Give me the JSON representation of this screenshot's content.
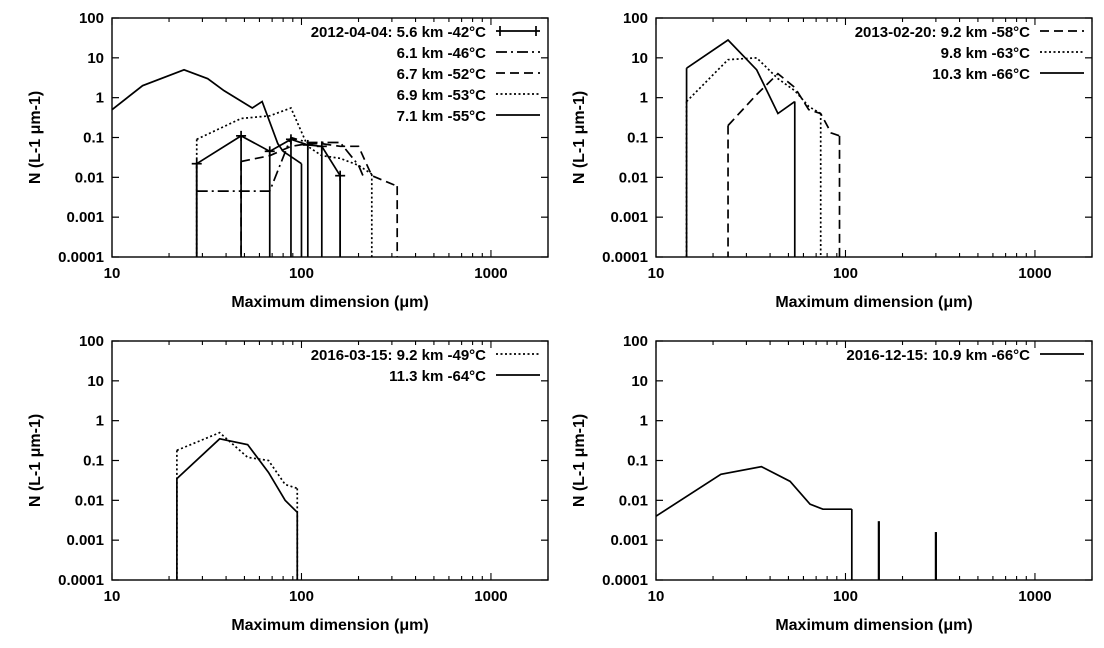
{
  "chart_data": [
    {
      "type": "line",
      "xlabel": "Maximum dimension (μm)",
      "ylabel": "N (L-1 μm-1)",
      "xscale": "log",
      "yscale": "log",
      "xlim": [
        10,
        2000
      ],
      "ylim": [
        0.0001,
        100
      ],
      "x_ticks": [
        "10",
        "100",
        "1000"
      ],
      "y_ticks": [
        "0.0001",
        "0.001",
        "0.01",
        "0.1",
        "1",
        "10",
        "100"
      ],
      "legend_position": "top-right",
      "grid": false,
      "series": [
        {
          "name": "2012-04-04: 5.6 km  -42°C",
          "style": "solid-cross",
          "drop_bins": true,
          "x": [
            28,
            48,
            68,
            88,
            108,
            128,
            160
          ],
          "y": [
            0.022,
            0.11,
            0.045,
            0.09,
            0.065,
            0.06,
            0.011
          ]
        },
        {
          "name": "6.1 km  -46°C",
          "style": "dashdot",
          "drop_bins": false,
          "x": [
            28,
            48,
            68,
            88,
            108,
            128,
            160,
            200,
            215
          ],
          "y": [
            0.0045,
            0.0045,
            0.0045,
            0.1,
            0.075,
            0.075,
            0.075,
            0.02,
            0.009
          ]
        },
        {
          "name": "6.7 km  -52°C",
          "style": "dashed",
          "drop_bins": true,
          "x": [
            48,
            68,
            88,
            108,
            128,
            160,
            200,
            235,
            320
          ],
          "y": [
            0.025,
            0.035,
            0.06,
            0.07,
            0.07,
            0.06,
            0.06,
            0.011,
            0.006
          ]
        },
        {
          "name": "6.9 km  -53°C",
          "style": "dotted",
          "drop_bins": true,
          "x": [
            28,
            48,
            68,
            88,
            108,
            128,
            160,
            200,
            235
          ],
          "y": [
            0.09,
            0.3,
            0.35,
            0.55,
            0.06,
            0.035,
            0.03,
            0.02,
            0.012
          ]
        },
        {
          "name": "7.1 km  -55°C",
          "style": "solid",
          "drop_bins": true,
          "x": [
            10,
            14.5,
            24,
            32,
            39,
            55,
            62,
            75,
            80,
            100
          ],
          "y": [
            0.5,
            2,
            5,
            3,
            1.5,
            0.55,
            0.8,
            0.07,
            0.045,
            0.022
          ]
        }
      ]
    },
    {
      "type": "line",
      "xlabel": "Maximum dimension (μm)",
      "ylabel": "N (L-1 μm-1)",
      "xscale": "log",
      "yscale": "log",
      "xlim": [
        10,
        2000
      ],
      "ylim": [
        0.0001,
        100
      ],
      "x_ticks": [
        "10",
        "100",
        "1000"
      ],
      "y_ticks": [
        "0.0001",
        "0.001",
        "0.01",
        "0.1",
        "1",
        "10",
        "100"
      ],
      "legend_position": "top-right",
      "grid": false,
      "series": [
        {
          "name": "2013-02-20: 9.2 km  -58°C",
          "style": "dashed",
          "drop_bins": true,
          "x": [
            24,
            34,
            44,
            54,
            64,
            74,
            84,
            93
          ],
          "y": [
            0.2,
            1.2,
            4,
            1.8,
            0.5,
            0.4,
            0.13,
            0.11
          ]
        },
        {
          "name": "9.8 km  -63°C",
          "style": "dotted",
          "drop_bins": true,
          "x": [
            14.5,
            24,
            34,
            44,
            54,
            64,
            74
          ],
          "y": [
            0.8,
            9,
            10,
            3,
            1.5,
            0.6,
            0.4
          ]
        },
        {
          "name": "10.3 km  -66°C",
          "style": "solid",
          "drop_bins": true,
          "x": [
            14.5,
            24,
            34,
            44,
            54
          ],
          "y": [
            5.5,
            28,
            5,
            0.4,
            0.8
          ]
        }
      ]
    },
    {
      "type": "line",
      "xlabel": "Maximum dimension (μm)",
      "ylabel": "N (L-1 μm-1)",
      "xscale": "log",
      "yscale": "log",
      "xlim": [
        10,
        2000
      ],
      "ylim": [
        0.0001,
        100
      ],
      "x_ticks": [
        "10",
        "100",
        "1000"
      ],
      "y_ticks": [
        "0.0001",
        "0.001",
        "0.01",
        "0.1",
        "1",
        "10",
        "100"
      ],
      "legend_position": "top-right",
      "grid": false,
      "series": [
        {
          "name": "2016-03-15: 9.2 km  -49°C",
          "style": "dotted",
          "drop_bins": true,
          "x": [
            22,
            37,
            52,
            67,
            82,
            95
          ],
          "y": [
            0.18,
            0.5,
            0.12,
            0.1,
            0.025,
            0.02
          ]
        },
        {
          "name": "11.3 km  -64°C",
          "style": "solid",
          "drop_bins": true,
          "x": [
            22,
            37,
            52,
            67,
            82,
            95
          ],
          "y": [
            0.035,
            0.35,
            0.25,
            0.05,
            0.01,
            0.005
          ]
        }
      ]
    },
    {
      "type": "line",
      "xlabel": "Maximum dimension (μm)",
      "ylabel": "N (L-1 μm-1)",
      "xscale": "log",
      "yscale": "log",
      "xlim": [
        10,
        2000
      ],
      "ylim": [
        0.0001,
        100
      ],
      "x_ticks": [
        "10",
        "100",
        "1000"
      ],
      "y_ticks": [
        "0.0001",
        "0.001",
        "0.01",
        "0.1",
        "1",
        "10",
        "100"
      ],
      "legend_position": "top-right",
      "grid": false,
      "series": [
        {
          "name": "2016-12-15: 10.9 km  -66°C",
          "style": "solid",
          "drop_bins": true,
          "x": [
            10,
            22,
            36,
            51,
            65,
            76,
            108
          ],
          "y": [
            0.004,
            0.045,
            0.07,
            0.03,
            0.008,
            0.006,
            0.006
          ],
          "spikes": [
            {
              "x": 150,
              "y": 0.003
            },
            {
              "x": 300,
              "y": 0.0016
            }
          ]
        }
      ]
    }
  ]
}
